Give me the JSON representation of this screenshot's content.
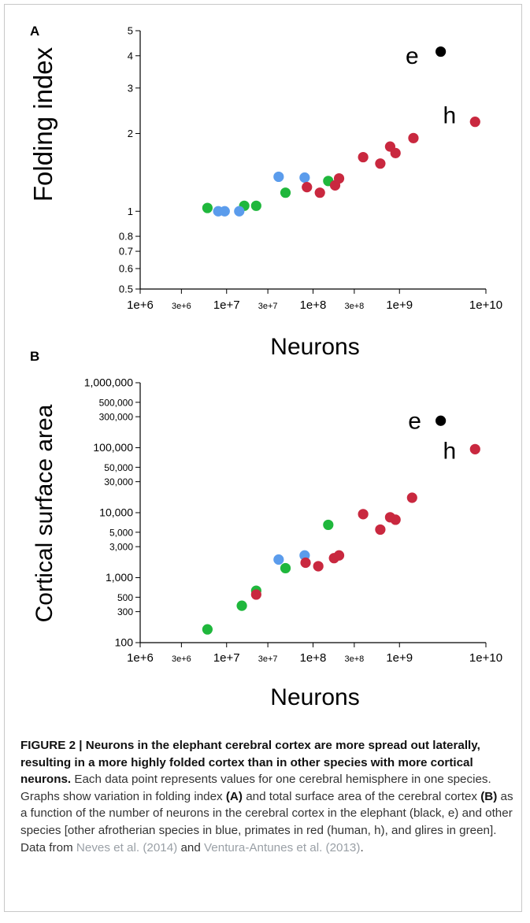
{
  "chart_data": [
    {
      "panel": "A",
      "type": "scatter",
      "ylabel": "Folding index",
      "xlabel": "Neurons",
      "x_scale": "log",
      "y_scale": "log",
      "xlim": [
        1000000,
        10000000000
      ],
      "ylim": [
        0.5,
        5
      ],
      "x_ticks": [
        {
          "value": 1000000,
          "label": "1e+6",
          "minor": false
        },
        {
          "value": 3000000,
          "label": "3e+6",
          "minor": true
        },
        {
          "value": 10000000,
          "label": "1e+7",
          "minor": false
        },
        {
          "value": 30000000,
          "label": "3e+7",
          "minor": true
        },
        {
          "value": 100000000,
          "label": "1e+8",
          "minor": false
        },
        {
          "value": 300000000,
          "label": "3e+8",
          "minor": true
        },
        {
          "value": 1000000000,
          "label": "1e+9",
          "minor": false
        },
        {
          "value": 10000000000,
          "label": "1e+10",
          "minor": false
        }
      ],
      "y_ticks": [
        {
          "value": 0.5,
          "label": "0.5",
          "minor": true
        },
        {
          "value": 0.6,
          "label": "0.6",
          "minor": true
        },
        {
          "value": 0.7,
          "label": "0.7",
          "minor": true
        },
        {
          "value": 0.8,
          "label": "0.8",
          "minor": true
        },
        {
          "value": 1,
          "label": "1",
          "minor": false
        },
        {
          "value": 2,
          "label": "2",
          "minor": false
        },
        {
          "value": 3,
          "label": "3",
          "minor": false
        },
        {
          "value": 4,
          "label": "4",
          "minor": false
        },
        {
          "value": 5,
          "label": "5",
          "minor": false
        }
      ],
      "series": [
        {
          "group": "glires",
          "color": "#1fb73c",
          "points": [
            [
              6000000,
              1.03
            ],
            [
              16000000,
              1.05
            ],
            [
              22000000,
              1.05
            ],
            [
              48000000,
              1.18
            ],
            [
              150000000,
              1.31
            ]
          ]
        },
        {
          "group": "afrotherian",
          "color": "#5b9cec",
          "points": [
            [
              8000000,
              1.0
            ],
            [
              9500000,
              1.0
            ],
            [
              14000000,
              1.0
            ],
            [
              40000000,
              1.36
            ],
            [
              80000000,
              1.35
            ]
          ]
        },
        {
          "group": "primates",
          "color": "#c9283f",
          "points": [
            [
              85000000,
              1.24
            ],
            [
              120000000,
              1.18
            ],
            [
              180000000,
              1.26
            ],
            [
              200000000,
              1.34
            ],
            [
              380000000,
              1.62
            ],
            [
              600000000,
              1.53
            ],
            [
              780000000,
              1.78
            ],
            [
              900000000,
              1.68
            ],
            [
              1450000000,
              1.92
            ],
            [
              7500000000,
              2.22
            ]
          ]
        },
        {
          "group": "elephant",
          "color": "#000000",
          "points": [
            [
              3000000000,
              4.15
            ]
          ]
        }
      ],
      "annotations": [
        {
          "text": "e",
          "x": 1400000000,
          "y": 4.0
        },
        {
          "text": "h",
          "x": 3800000000,
          "y": 2.35
        }
      ]
    },
    {
      "panel": "B",
      "type": "scatter",
      "ylabel": "Cortical surface area",
      "xlabel": "Neurons",
      "x_scale": "log",
      "y_scale": "log",
      "xlim": [
        1000000,
        10000000000
      ],
      "ylim": [
        100,
        1000000
      ],
      "x_ticks": [
        {
          "value": 1000000,
          "label": "1e+6",
          "minor": false
        },
        {
          "value": 3000000,
          "label": "3e+6",
          "minor": true
        },
        {
          "value": 10000000,
          "label": "1e+7",
          "minor": false
        },
        {
          "value": 30000000,
          "label": "3e+7",
          "minor": true
        },
        {
          "value": 100000000,
          "label": "1e+8",
          "minor": false
        },
        {
          "value": 300000000,
          "label": "3e+8",
          "minor": true
        },
        {
          "value": 1000000000,
          "label": "1e+9",
          "minor": false
        },
        {
          "value": 10000000000,
          "label": "1e+10",
          "minor": false
        }
      ],
      "y_ticks": [
        {
          "value": 100,
          "label": "100",
          "minor": false
        },
        {
          "value": 300,
          "label": "300",
          "minor": true
        },
        {
          "value": 500,
          "label": "500",
          "minor": true
        },
        {
          "value": 1000,
          "label": "1,000",
          "minor": false
        },
        {
          "value": 3000,
          "label": "3,000",
          "minor": true
        },
        {
          "value": 5000,
          "label": "5,000",
          "minor": true
        },
        {
          "value": 10000,
          "label": "10,000",
          "minor": false
        },
        {
          "value": 30000,
          "label": "30,000",
          "minor": true
        },
        {
          "value": 50000,
          "label": "50,000",
          "minor": true
        },
        {
          "value": 100000,
          "label": "100,000",
          "minor": false
        },
        {
          "value": 300000,
          "label": "300,000",
          "minor": true
        },
        {
          "value": 500000,
          "label": "500,000",
          "minor": true
        },
        {
          "value": 1000000,
          "label": "1,000,000",
          "minor": false
        }
      ],
      "series": [
        {
          "group": "glires",
          "color": "#1fb73c",
          "points": [
            [
              6000000,
              160
            ],
            [
              15000000,
              370
            ],
            [
              22000000,
              630
            ],
            [
              48000000,
              1400
            ],
            [
              150000000,
              6500
            ]
          ]
        },
        {
          "group": "afrotherian",
          "color": "#5b9cec",
          "points": [
            [
              40000000,
              1900
            ],
            [
              80000000,
              2200
            ]
          ]
        },
        {
          "group": "primates",
          "color": "#c9283f",
          "points": [
            [
              22000000,
              550
            ],
            [
              82000000,
              1700
            ],
            [
              115000000,
              1500
            ],
            [
              175000000,
              2000
            ],
            [
              200000000,
              2200
            ],
            [
              380000000,
              9500
            ],
            [
              600000000,
              5500
            ],
            [
              780000000,
              8500
            ],
            [
              900000000,
              7800
            ],
            [
              1400000000,
              17000
            ],
            [
              7500000000,
              95000
            ]
          ]
        },
        {
          "group": "elephant",
          "color": "#000000",
          "points": [
            [
              3000000000,
              260000
            ]
          ]
        }
      ],
      "annotations": [
        {
          "text": "e",
          "x": 1500000000,
          "y": 260000
        },
        {
          "text": "h",
          "x": 3800000000,
          "y": 90000
        }
      ]
    }
  ],
  "caption": {
    "title": "FIGURE 2 | Neurons in the elephant cerebral cortex are more spread out laterally, resulting in a more highly folded cortex than in other species with more cortical neurons.",
    "body_1": " Each data point represents values for one cerebral hemisphere in one species. Graphs show variation in folding index ",
    "ref_a": "(A)",
    "body_2": " and total surface area of the cerebral cortex ",
    "ref_b": "(B)",
    "body_3": " as a function of the number of neurons in the cerebral cortex in the elephant (black, e) and other species [other afrotherian species in blue, primates in red (human, h), and glires in green]. Data from ",
    "cite_1": "Neves et al. (2014)",
    "and": " and ",
    "cite_2": "Ventura-Antunes et al. (2013)",
    "end": "."
  }
}
